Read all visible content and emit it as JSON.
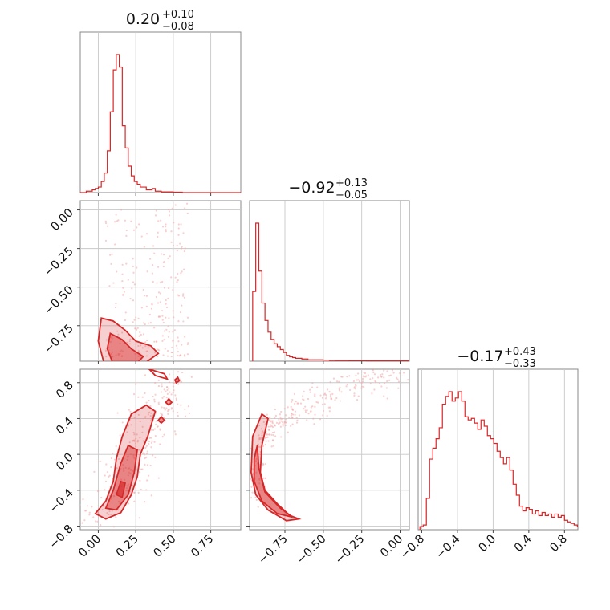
{
  "chart_data": {
    "type": "corner",
    "color": "#d62728",
    "params": [
      {
        "median": "0.20",
        "plus": "+0.10",
        "minus": "−0.08"
      },
      {
        "median": "−0.92",
        "plus": "+0.13",
        "minus": "−0.05"
      },
      {
        "median": "−0.17",
        "plus": "+0.43",
        "minus": "−0.33"
      }
    ],
    "ranges": [
      [
        -0.12,
        0.95
      ],
      [
        -0.98,
        0.06
      ],
      [
        -0.84,
        0.95
      ]
    ],
    "ticks": {
      "p0": {
        "values": [
          0.0,
          0.25,
          0.5,
          0.75
        ],
        "labels": [
          "0.00",
          "0.25",
          "0.50",
          "0.75"
        ]
      },
      "p1": {
        "values": [
          -0.75,
          -0.5,
          -0.25,
          0.0
        ],
        "labels": [
          "−0.75",
          "−0.50",
          "−0.25",
          "0.00"
        ]
      },
      "p1_y": {
        "values": [
          0.0,
          -0.25,
          -0.5,
          -0.75
        ],
        "labels": [
          "0.00",
          "−0.25",
          "−0.50",
          "−0.75"
        ]
      },
      "p2": {
        "values": [
          -0.8,
          -0.4,
          0.0,
          0.4,
          0.8
        ],
        "labels": [
          "−0.8",
          "−0.4",
          "0.0",
          "0.4",
          "0.8"
        ]
      },
      "p2_y": {
        "values": [
          0.8,
          0.4,
          0.0,
          -0.4,
          -0.8
        ],
        "labels": [
          "0.8",
          "0.4",
          "0.0",
          "−0.4",
          "−0.8"
        ]
      }
    },
    "hist0": {
      "edges_start": -0.12,
      "bin_width": 0.02,
      "counts": [
        0,
        0,
        1,
        1,
        2,
        3,
        4,
        8,
        14,
        30,
        58,
        88,
        99,
        90,
        48,
        32,
        19,
        12,
        8,
        6,
        4,
        4,
        2,
        2,
        3,
        1,
        1,
        0.5,
        0.5,
        0.5,
        0.5,
        0.3,
        0.3,
        0.3,
        0,
        0,
        0,
        0,
        0,
        0,
        0,
        0,
        0,
        0,
        0,
        0,
        0,
        0,
        0,
        0,
        0,
        0,
        0,
        0
      ]
    },
    "hist1": {
      "edges_start": -0.96,
      "bin_width": 0.02,
      "counts": [
        48,
        95,
        62,
        40,
        28,
        20,
        15,
        12,
        10,
        8,
        6,
        4,
        3,
        2.5,
        2,
        2,
        1.5,
        1.5,
        1,
        1,
        1,
        1,
        1,
        0.8,
        0.8,
        0.6,
        0.6,
        0.5,
        0.5,
        0.5,
        0.5,
        0.3,
        0.3,
        0.3,
        0.3,
        0.3,
        0.3,
        0.2,
        0.2,
        0.2,
        0.2,
        0.2,
        0.2,
        0.2,
        0.2,
        0.2,
        0.2,
        0.2,
        0.2,
        0.2,
        0.2,
        0.2
      ]
    },
    "hist2": {
      "edges_start": -0.82,
      "bin_width": 0.036,
      "counts": [
        2,
        3,
        20,
        45,
        52,
        58,
        65,
        80,
        85,
        88,
        82,
        84,
        88,
        82,
        72,
        70,
        71,
        68,
        64,
        70,
        66,
        60,
        58,
        55,
        50,
        46,
        42,
        46,
        38,
        29,
        22,
        15,
        12,
        14,
        13,
        10,
        12,
        9,
        11,
        9,
        10,
        8,
        10,
        8,
        9,
        6,
        5,
        4,
        3,
        2
      ]
    }
  }
}
